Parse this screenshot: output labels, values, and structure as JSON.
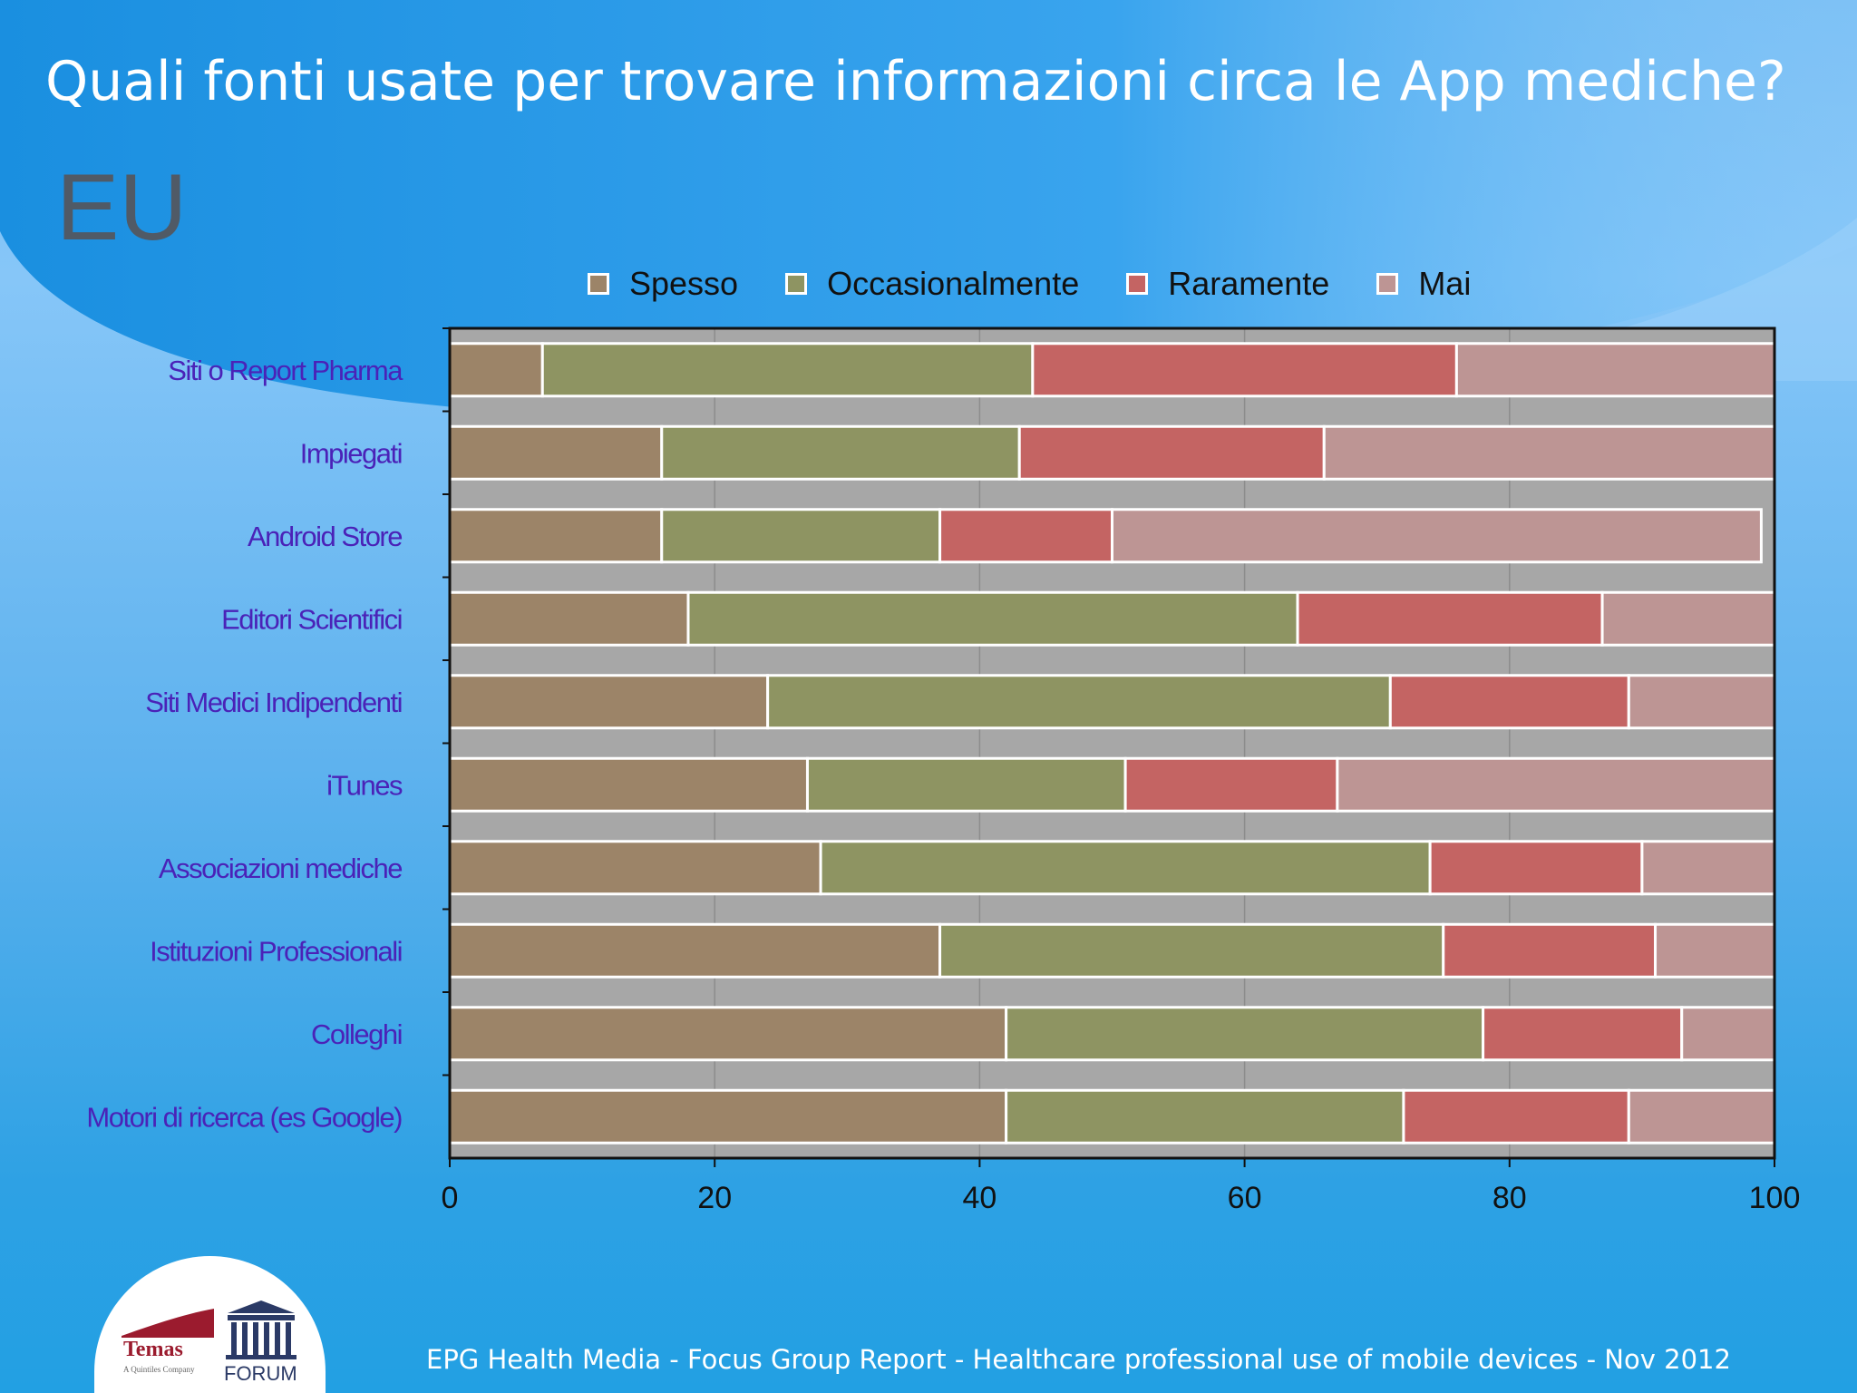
{
  "slide": {
    "title": "Quali fonti usate per trovare informazioni circa le App mediche?",
    "subtitle": "EU",
    "footer": "EPG Health Media - Focus Group Report - Healthcare professional use of mobile devices - Nov 2012",
    "logos": {
      "temas_text": "Temas",
      "temas_tagline": "A Quintiles Company",
      "forum_text": "FORUM"
    }
  },
  "chart_data": {
    "type": "bar",
    "orientation": "horizontal",
    "stacked": true,
    "categories": [
      "Siti o Report Pharma",
      "Impiegati",
      "Android Store",
      "Editori Scientifici",
      "Siti Medici Indipendenti",
      "iTunes",
      "Associazioni mediche",
      "Istituzioni Professionali",
      "Colleghi",
      "Motori di ricerca (es Google)"
    ],
    "series": [
      {
        "name": "Spesso",
        "color": "#9c8468",
        "values": [
          7,
          16,
          16,
          18,
          24,
          27,
          28,
          37,
          42,
          42
        ]
      },
      {
        "name": "Occasionalmente",
        "color": "#8e9462",
        "values": [
          37,
          27,
          21,
          46,
          47,
          24,
          46,
          38,
          36,
          30
        ]
      },
      {
        "name": "Raramente",
        "color": "#c46463",
        "values": [
          32,
          23,
          13,
          23,
          18,
          16,
          16,
          16,
          15,
          17
        ]
      },
      {
        "name": "Mai",
        "color": "#bd9594",
        "values": [
          24,
          34,
          49,
          13,
          11,
          33,
          10,
          9,
          7,
          11
        ]
      }
    ],
    "xlim": [
      0,
      100
    ],
    "xticks": [
      0,
      20,
      40,
      60,
      80,
      100
    ],
    "grid": true,
    "legend_position": "top",
    "category_label_color": "#4a22b8",
    "plot_background": "#a7a7a7"
  }
}
